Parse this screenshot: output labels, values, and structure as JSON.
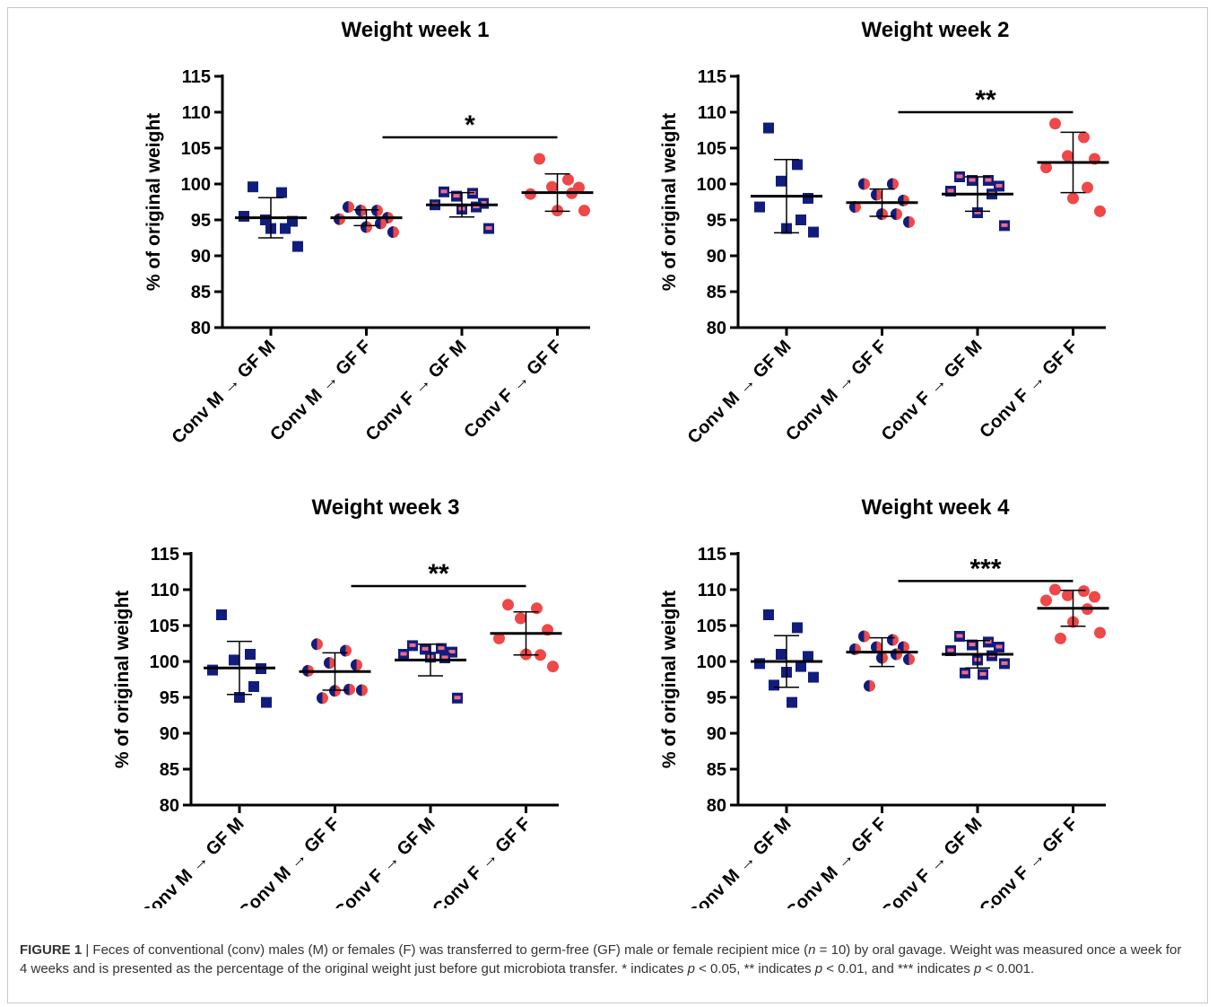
{
  "chart_data": [
    {
      "type": "scatter",
      "title": "Weight week 1",
      "y_label": "% of original weight",
      "ylim": [
        80,
        115
      ],
      "yticks": [
        80,
        85,
        90,
        95,
        100,
        105,
        110,
        115
      ],
      "categories": [
        "Conv M → GF M",
        "Conv M → GF F",
        "Conv F → GF M",
        "Conv F → GF F"
      ],
      "series": [
        {
          "marker": "square",
          "color": "#111d7c",
          "values": [
            99.6,
            98.8,
            95.0,
            94.8,
            95.5,
            93.8,
            93.8,
            91.3
          ],
          "mean": 95.3,
          "sd": 2.8
        },
        {
          "marker": "half-circle",
          "color": "#ee4848",
          "values": [
            96.8,
            96.3,
            96.3,
            95.3,
            95.1,
            94.5,
            94.0,
            93.3
          ],
          "mean": 95.3,
          "sd": 1.1
        },
        {
          "marker": "square-dot",
          "color": "#111d7c",
          "values": [
            98.9,
            98.7,
            98.3,
            97.3,
            97.1,
            96.8,
            96.5,
            93.8
          ],
          "mean": 97.1,
          "sd": 1.7
        },
        {
          "marker": "circle",
          "color": "#ee4848",
          "values": [
            103.5,
            100.6,
            99.6,
            99.5,
            98.6,
            98.7,
            96.3,
            96.3
          ],
          "mean": 98.8,
          "sd": 2.6
        }
      ],
      "significance": {
        "label": "*",
        "y": 106.5
      }
    },
    {
      "type": "scatter",
      "title": "Weight week 2",
      "y_label": "% of original weight",
      "ylim": [
        80,
        115
      ],
      "yticks": [
        80,
        85,
        90,
        95,
        100,
        105,
        110,
        115
      ],
      "categories": [
        "Conv M → GF M",
        "Conv M → GF F",
        "Conv F → GF M",
        "Conv F → GF F"
      ],
      "series": [
        {
          "marker": "square",
          "color": "#111d7c",
          "values": [
            107.8,
            102.7,
            100.4,
            98.0,
            96.8,
            95.0,
            93.8,
            93.3
          ],
          "mean": 98.3,
          "sd": 5.1
        },
        {
          "marker": "half-circle",
          "color": "#ee4848",
          "values": [
            100.0,
            100.0,
            98.5,
            97.7,
            96.8,
            95.8,
            95.8,
            94.7
          ],
          "mean": 97.4,
          "sd": 1.9
        },
        {
          "marker": "square-dot",
          "color": "#111d7c",
          "values": [
            101.0,
            100.5,
            100.5,
            99.7,
            99.0,
            98.6,
            96.0,
            94.2
          ],
          "mean": 98.6,
          "sd": 2.4
        },
        {
          "marker": "circle",
          "color": "#ee4848",
          "values": [
            108.4,
            106.5,
            103.9,
            103.5,
            102.3,
            99.5,
            98.0,
            96.2
          ],
          "mean": 103.0,
          "sd": 4.2
        }
      ],
      "significance": {
        "label": "**",
        "y": 110
      }
    },
    {
      "type": "scatter",
      "title": "Weight week 3",
      "y_label": "% of original weight",
      "ylim": [
        80,
        115
      ],
      "yticks": [
        80,
        85,
        90,
        95,
        100,
        105,
        110,
        115
      ],
      "categories": [
        "Conv M → GF M",
        "Conv M → GF F",
        "Conv F → GF M",
        "Conv F → GF F"
      ],
      "series": [
        {
          "marker": "square",
          "color": "#111d7c",
          "values": [
            106.5,
            101.0,
            100.2,
            99.0,
            98.8,
            96.5,
            95.0,
            94.3
          ],
          "mean": 99.1,
          "sd": 3.7
        },
        {
          "marker": "half-circle",
          "color": "#ee4848",
          "values": [
            102.4,
            101.5,
            99.8,
            99.5,
            98.7,
            96.1,
            95.9,
            96.0,
            94.9
          ],
          "mean": 98.6,
          "sd": 2.6
        },
        {
          "marker": "square-dot",
          "color": "#111d7c",
          "values": [
            102.2,
            101.8,
            101.7,
            101.3,
            101.0,
            100.5,
            100.6,
            94.9
          ],
          "mean": 100.2,
          "sd": 2.2
        },
        {
          "marker": "circle",
          "color": "#ee4848",
          "values": [
            107.9,
            107.4,
            106.0,
            104.4,
            103.2,
            100.9,
            101.0,
            99.3
          ],
          "mean": 103.9,
          "sd": 3.0
        }
      ],
      "significance": {
        "label": "**",
        "y": 110.5
      }
    },
    {
      "type": "scatter",
      "title": "Weight week 4",
      "y_label": "% of original weight",
      "ylim": [
        80,
        115
      ],
      "yticks": [
        80,
        85,
        90,
        95,
        100,
        105,
        110,
        115
      ],
      "categories": [
        "Conv M → GF M",
        "Conv M → GF F",
        "Conv F → GF M",
        "Conv F → GF F"
      ],
      "series": [
        {
          "marker": "square",
          "color": "#111d7c",
          "values": [
            106.5,
            104.7,
            101.0,
            100.7,
            99.7,
            99.3,
            98.5,
            97.8,
            96.7,
            94.3
          ],
          "mean": 100.0,
          "sd": 3.6
        },
        {
          "marker": "half-circle",
          "color": "#ee4848",
          "values": [
            103.5,
            103.0,
            102.0,
            102.0,
            101.7,
            101.0,
            100.5,
            100.3,
            96.6
          ],
          "mean": 101.3,
          "sd": 2.0
        },
        {
          "marker": "square-dot",
          "color": "#111d7c",
          "values": [
            103.5,
            102.7,
            102.3,
            102.0,
            101.5,
            100.8,
            100.2,
            99.7,
            98.4,
            98.2
          ],
          "mean": 101.0,
          "sd": 1.9
        },
        {
          "marker": "circle",
          "color": "#ee4848",
          "values": [
            110.0,
            109.8,
            109.2,
            109.0,
            108.5,
            107.3,
            105.5,
            104.0,
            103.2
          ],
          "mean": 107.4,
          "sd": 2.5
        }
      ],
      "significance": {
        "label": "***",
        "y": 111.2
      }
    }
  ],
  "caption": {
    "label": "FIGURE 1",
    "parts": [
      " | Feces of conventional (conv) males (M) or females (F) was transferred to germ-free (GF) male or female recipient mice (",
      "n",
      " = 10) by oral gavage. Weight was measured once a week for 4 weeks and is presented as the percentage of the original weight just before gut microbiota transfer. * indicates ",
      "p",
      " < 0.05, ** indicates ",
      "p",
      " < 0.01, and *** indicates ",
      "p",
      " < 0.001."
    ]
  }
}
